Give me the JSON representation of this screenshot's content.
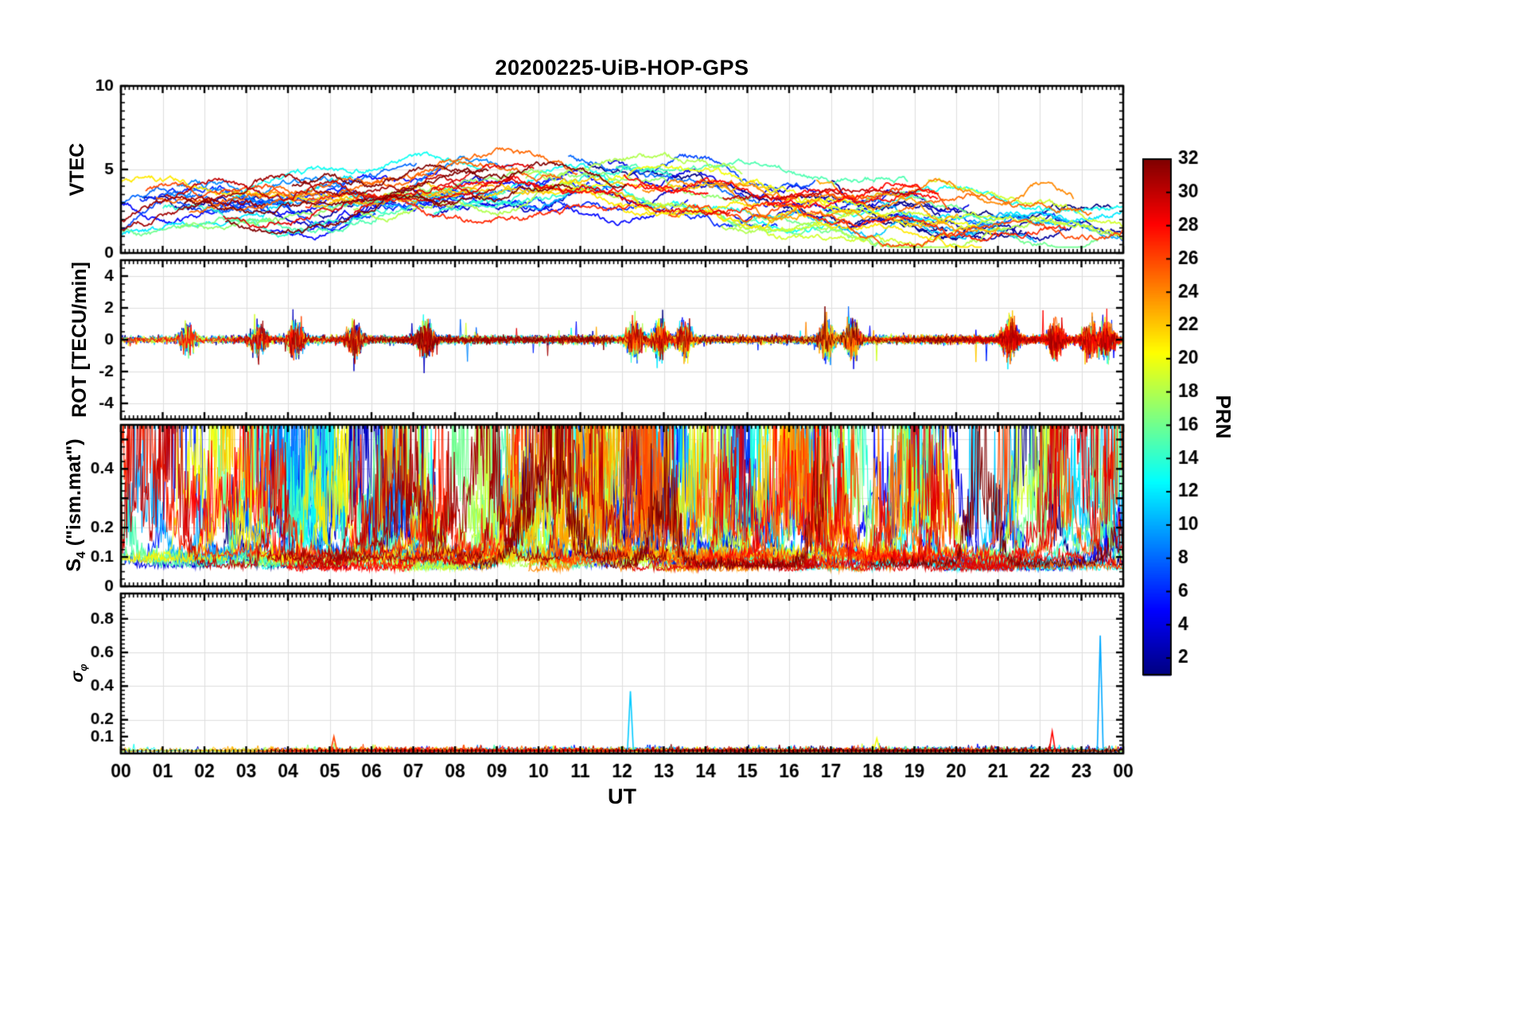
{
  "title": "20200225-UiB-HOP-GPS",
  "x_axis": {
    "label": "UT",
    "min": 0,
    "max": 24,
    "tick_labels": [
      "00",
      "01",
      "02",
      "03",
      "04",
      "05",
      "06",
      "07",
      "08",
      "09",
      "10",
      "11",
      "12",
      "13",
      "14",
      "15",
      "16",
      "17",
      "18",
      "19",
      "20",
      "21",
      "22",
      "23",
      "00"
    ]
  },
  "colorbar": {
    "label": "PRN",
    "min": 1,
    "max": 32,
    "ticks": [
      2,
      4,
      6,
      8,
      10,
      12,
      14,
      16,
      18,
      20,
      22,
      24,
      26,
      28,
      30,
      32
    ],
    "colormap": "jet"
  },
  "colors": {
    "axis": "#000000",
    "grid": "#dedede",
    "background": "#ffffff"
  },
  "chart_data": [
    {
      "type": "line",
      "panel": "VTEC",
      "ylabel": "VTEC",
      "ylim": [
        0,
        10
      ],
      "yticks": [
        0,
        5,
        10
      ],
      "series_count": 32,
      "series_colored_by": "PRN (jet colormap 1-32)",
      "behavior": {
        "baseline_range": [
          1,
          5
        ],
        "midday_enhancement_peak": 7,
        "midday_enhancement_center_ut": 10.5,
        "notes": "Many overlapping GPS satellite arcs 0.5-7 TECU; broad maximum 08-13 UT; dark-red arc reaches ~7 near 08-10 UT and yellow-green arc ~6.9 near 12 UT"
      }
    },
    {
      "type": "line",
      "panel": "ROT",
      "ylabel": "ROT [TECU/min]",
      "ylim": [
        -5,
        5
      ],
      "yticks": [
        -4,
        -2,
        0,
        2,
        4
      ],
      "behavior": {
        "noise_band": [
          -0.5,
          0.5
        ],
        "burst_amplitude": 1.8,
        "burst_uts": [
          1.6,
          3.3,
          4.2,
          5.6,
          7.3,
          12.3,
          12.9,
          13.5,
          16.9,
          17.5,
          21.3,
          22.4,
          23.2,
          23.6
        ],
        "notes": "Rate of TEC noise tightly around 0 with episodic bursts up to about +/-1.8 TECU/min"
      }
    },
    {
      "type": "line",
      "panel": "S4",
      "ylabel": "S4 (\"ism.mat\")",
      "ylabel_base": "S",
      "ylabel_sub": "4",
      "ylabel_suffix": " (\"ism.mat\")",
      "ylim": [
        0,
        0.55
      ],
      "yticks": [
        0,
        0.1,
        0.2,
        0.4
      ],
      "behavior": {
        "baseline_range": [
          0.05,
          0.15
        ],
        "spike_range": [
          0.2,
          0.55
        ],
        "notes": "Amplitude scintillation index: dense spiky traces from all PRNs across 24 h, frequent peaks 0.3-0.55 clipped at panel top"
      }
    },
    {
      "type": "line",
      "panel": "sigma-phi",
      "ylabel": "σφ",
      "ylabel_base": "σ",
      "ylabel_sub": "φ",
      "ylim": [
        0,
        0.95
      ],
      "yticks": [
        0.1,
        0.2,
        0.4,
        0.6,
        0.8
      ],
      "behavior": {
        "baseline_max": 0.05,
        "spikes": [
          {
            "ut": 5.1,
            "value": 0.1,
            "prn": 26
          },
          {
            "ut": 12.2,
            "value": 0.37,
            "prn": 11
          },
          {
            "ut": 18.1,
            "value": 0.09,
            "prn": 20
          },
          {
            "ut": 22.3,
            "value": 0.13,
            "prn": 28
          },
          {
            "ut": 23.45,
            "value": 0.7,
            "prn": 10
          }
        ],
        "notes": "Phase scintillation mostly below 0.05 with isolated cyan spikes to 0.37 at ~12.2 UT and 0.70 at ~23.4 UT"
      }
    }
  ]
}
